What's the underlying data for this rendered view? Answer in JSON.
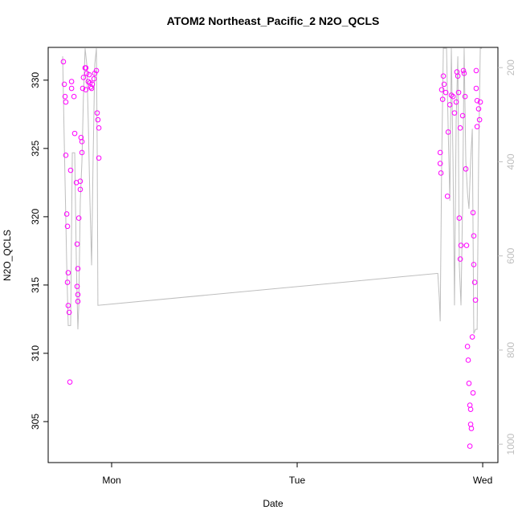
{
  "chart_data": {
    "type": "scatter",
    "title": "ATOM2 Northeast_Pacific_2 N2O_QCLS",
    "xlabel": "Date",
    "ylabel": "N2O_QCLS",
    "xlim": [
      -0.342,
      2.082
    ],
    "xticks": [
      {
        "value": 0,
        "label": "Mon"
      },
      {
        "value": 1,
        "label": "Tue"
      },
      {
        "value": 2,
        "label": "Wed"
      }
    ],
    "ylim": [
      302.0,
      332.4
    ],
    "yticks": [
      305,
      310,
      315,
      320,
      325,
      330
    ],
    "y2lim": [
      1039,
      157
    ],
    "y2ticks": [
      200,
      400,
      600,
      800,
      1000
    ],
    "y2color": "#bebebe",
    "series": [
      {
        "type": "scatter",
        "color": "#ff00ff",
        "x": [
          -0.26,
          -0.255,
          -0.251,
          -0.247,
          -0.247,
          -0.242,
          -0.238,
          -0.238,
          -0.234,
          -0.234,
          -0.229,
          -0.225,
          -0.221,
          -0.216,
          -0.216,
          -0.203,
          -0.199,
          -0.19,
          -0.186,
          -0.182,
          -0.186,
          -0.182,
          -0.182,
          -0.177,
          -0.169,
          -0.169,
          -0.165,
          -0.16,
          -0.16,
          -0.152,
          -0.143,
          -0.139,
          -0.134,
          -0.139,
          -0.126,
          -0.117,
          -0.113,
          -0.104,
          -0.095,
          -0.091,
          -0.082,
          -0.078,
          -0.074,
          -0.069,
          -0.069,
          -0.121,
          -0.156,
          -0.108,
          1.771,
          1.771,
          1.775,
          1.779,
          1.784,
          1.788,
          1.792,
          1.801,
          1.81,
          1.814,
          1.823,
          1.831,
          1.84,
          1.848,
          1.857,
          1.861,
          1.866,
          1.87,
          1.874,
          1.879,
          1.879,
          1.883,
          1.892,
          1.896,
          1.9,
          1.905,
          1.909,
          1.913,
          1.918,
          1.922,
          1.926,
          1.931,
          1.935,
          1.931,
          1.939,
          1.944,
          1.948,
          1.952,
          1.952,
          1.957,
          1.961,
          1.965,
          1.97,
          1.978,
          1.983,
          1.987,
          1.97,
          1.965,
          1.948,
          1.935
        ],
        "values": [
          331.35,
          329.7,
          328.8,
          328.4,
          324.5,
          320.2,
          319.3,
          315.2,
          315.9,
          313.5,
          313.0,
          307.9,
          323.4,
          329.4,
          329.9,
          328.8,
          326.1,
          322.5,
          318.0,
          316.2,
          314.9,
          314.3,
          313.8,
          319.9,
          322.6,
          322.0,
          325.8,
          325.5,
          324.7,
          330.2,
          330.9,
          330.9,
          330.5,
          329.3,
          329.9,
          329.8,
          329.5,
          329.7,
          330.1,
          330.5,
          330.7,
          327.6,
          327.1,
          326.5,
          324.3,
          330.4,
          329.4,
          329.4,
          324.7,
          323.9,
          323.2,
          329.3,
          328.6,
          330.3,
          329.7,
          329.1,
          321.5,
          326.2,
          328.2,
          328.9,
          328.8,
          327.6,
          328.4,
          330.6,
          330.3,
          329.1,
          319.9,
          326.5,
          316.9,
          317.9,
          327.4,
          330.7,
          330.5,
          328.8,
          323.5,
          317.9,
          310.5,
          309.5,
          307.8,
          306.2,
          304.8,
          303.2,
          304.5,
          311.2,
          320.3,
          318.6,
          316.5,
          315.2,
          313.9,
          329.4,
          328.5,
          327.9,
          327.1,
          328.4,
          326.6,
          330.7,
          307.1,
          305.9
        ]
      },
      {
        "type": "line",
        "axis": "y2",
        "color": "#bebebe",
        "x": [
          -0.264,
          -0.255,
          -0.242,
          -0.234,
          -0.221,
          -0.212,
          -0.199,
          -0.19,
          -0.182,
          -0.177,
          -0.169,
          -0.16,
          -0.152,
          -0.143,
          -0.134,
          -0.126,
          -0.117,
          -0.108,
          -0.1,
          -0.091,
          -0.082,
          -0.078,
          -0.074,
          1.758,
          1.766,
          1.771,
          1.779,
          1.788,
          1.805,
          1.814,
          1.823,
          1.831,
          1.84,
          1.848,
          1.857,
          1.866,
          1.874,
          1.883,
          1.892,
          1.9,
          1.909,
          1.918,
          1.926,
          1.935,
          1.944,
          1.952,
          1.961,
          1.97,
          1.978,
          1.987,
          1.996
        ],
        "values": [
          176,
          364,
          620,
          748,
          748,
          381,
          381,
          620,
          756,
          705,
          483,
          398,
          261,
          159,
          193,
          313,
          483,
          620,
          398,
          193,
          159,
          364,
          705,
          637,
          688,
          739,
          398,
          159,
          159,
          330,
          483,
          159,
          398,
          705,
          313,
          176,
          620,
          705,
          483,
          159,
          398,
          466,
          500,
          398,
          330,
          765,
          756,
          756,
          398,
          159,
          159
        ]
      }
    ]
  }
}
